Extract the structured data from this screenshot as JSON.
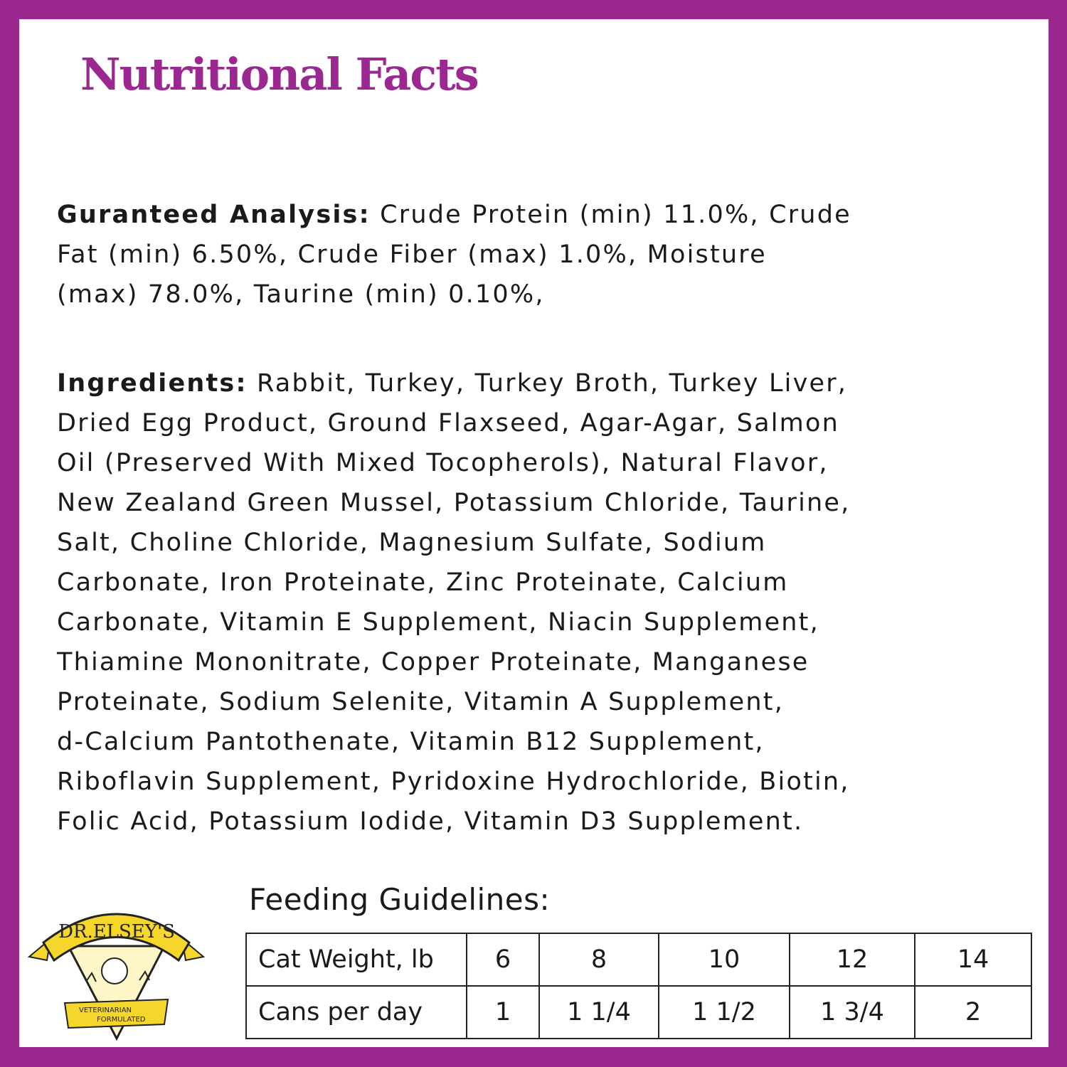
{
  "title": "Nutritional Facts",
  "guaranteed_analysis": {
    "label": "Guranteed Analysis:",
    "lines": [
      " Crude Protein (min) 11.0%, Crude",
      "Fat (min) 6.50%, Crude Fiber (max) 1.0%, Moisture",
      "(max) 78.0%, Taurine (min) 0.10%,"
    ]
  },
  "ingredients": {
    "label": "Ingredients:",
    "lines": [
      " Rabbit, Turkey, Turkey Broth, Turkey Liver,",
      "Dried Egg Product, Ground Flaxseed, Agar-Agar, Salmon",
      "Oil (Preserved With Mixed Tocopherols), Natural Flavor,",
      "New Zealand Green Mussel, Potassium Chloride, Taurine,",
      "Salt, Choline Chloride, Magnesium Sulfate, Sodium",
      "Carbonate, Iron Proteinate, Zinc Proteinate, Calcium",
      "Carbonate, Vitamin E Supplement, Niacin Supplement,",
      "Thiamine Mononitrate, Copper Proteinate, Manganese",
      "Proteinate, Sodium Selenite, Vitamin A Supplement,",
      "d-Calcium Pantothenate, Vitamin B12 Supplement,",
      "Riboflavin Supplement, Pyridoxine Hydrochloride, Biotin,",
      "Folic Acid, Potassium Iodide, Vitamin D3 Supplement."
    ]
  },
  "feeding": {
    "heading": "Feeding Guidelines:",
    "rows": [
      {
        "label": "Cat Weight, lb",
        "values": [
          "6",
          "8",
          "10",
          "12",
          "14"
        ]
      },
      {
        "label": "Cans per day",
        "values": [
          "1",
          "1 1/4",
          "1 1/2",
          "1 3/4",
          "2"
        ]
      }
    ]
  },
  "logo": {
    "brand": "DR.ELSEY'S",
    "tagline1": "VETERINARIAN",
    "tagline2": "FORMULATED"
  },
  "colors": {
    "accent": "#9b2790",
    "logo_yellow": "#f5d62a"
  }
}
